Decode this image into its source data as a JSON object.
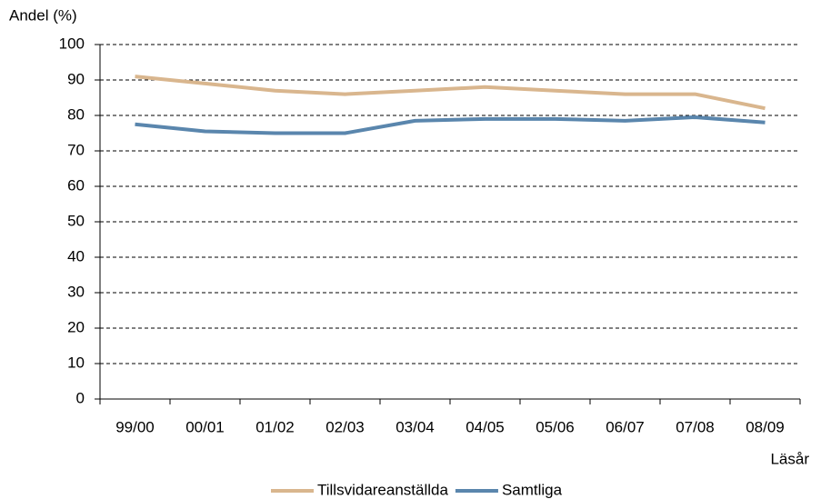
{
  "chart_data": {
    "type": "line",
    "y_label": "Andel (%)",
    "x_label": "Läsår",
    "categories": [
      "99/00",
      "00/01",
      "01/02",
      "02/03",
      "03/04",
      "04/05",
      "05/06",
      "06/07",
      "07/08",
      "08/09"
    ],
    "series": [
      {
        "name": "Tillsvidareanställda",
        "color": "#d9b68e",
        "values": [
          91,
          89,
          87,
          86,
          87,
          88,
          87,
          86,
          86,
          82
        ]
      },
      {
        "name": "Samtliga",
        "color": "#5a86ad",
        "values": [
          77.5,
          75.5,
          75,
          75,
          78.5,
          79,
          79,
          78.5,
          79.5,
          78
        ]
      }
    ],
    "ylim": [
      0,
      100
    ],
    "yticks": [
      0,
      10,
      20,
      30,
      40,
      50,
      60,
      70,
      80,
      90,
      100
    ],
    "grid": true,
    "legend": "bottom"
  }
}
